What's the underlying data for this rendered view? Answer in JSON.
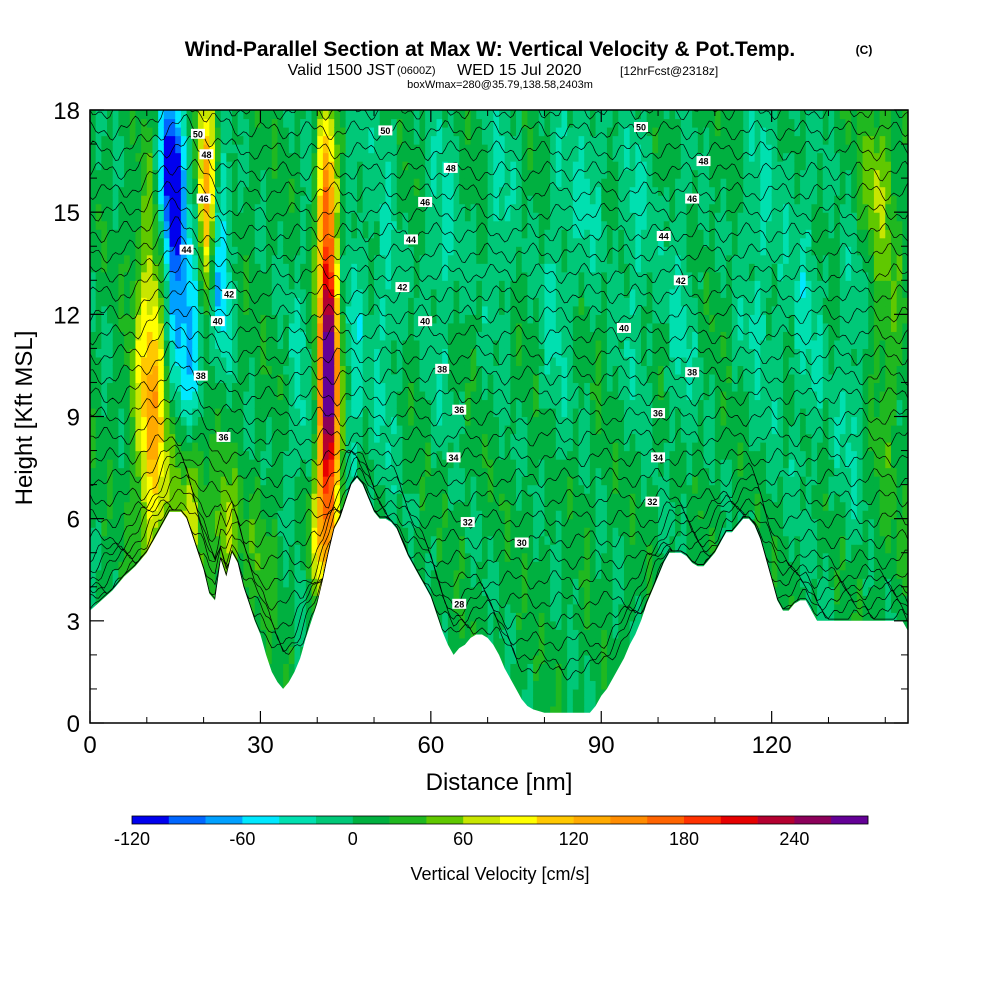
{
  "chart_data": {
    "type": "heatmap",
    "title": "Wind-Parallel Section at Max W: Vertical Velocity & Pot.Temp.",
    "title_mark": "(C)",
    "subtitle": {
      "prefix": "Valid 1500 JST",
      "zulu": "(0600Z)",
      "date": "WED 15 Jul 2020",
      "forecast": "[12hrFcst@2318z]"
    },
    "boxnote": "boxWmax=280@35.79,138.58,2403m",
    "xlabel": "Distance [nm]",
    "ylabel": "Height [Kft MSL]",
    "xlim": [
      0,
      144
    ],
    "ylim": [
      0,
      18
    ],
    "x_ticks": [
      "0",
      "30",
      "60",
      "90",
      "120"
    ],
    "y_ticks": [
      "0",
      "3",
      "6",
      "9",
      "12",
      "15",
      "18"
    ],
    "colorbar": {
      "label": "Vertical Velocity [cm/s]",
      "min": -120,
      "max": 280,
      "step": 20,
      "tick_labels": [
        "-120",
        "-60",
        "0",
        "60",
        "120",
        "180",
        "240"
      ],
      "colors": [
        "#0000ee",
        "#0066ff",
        "#00a0ff",
        "#00e8ff",
        "#00e0b0",
        "#00c878",
        "#00b040",
        "#20b820",
        "#60c800",
        "#c8e600",
        "#ffff00",
        "#ffc800",
        "#ffaa00",
        "#ff8c00",
        "#ff6400",
        "#ff3200",
        "#e60000",
        "#b40030",
        "#8c005a",
        "#640096"
      ]
    },
    "theta_labels": [
      {
        "value": "50",
        "x": 19,
        "y": 17.3
      },
      {
        "value": "48",
        "x": 20.5,
        "y": 16.7
      },
      {
        "value": "46",
        "x": 20,
        "y": 15.4
      },
      {
        "value": "44",
        "x": 17,
        "y": 13.9
      },
      {
        "value": "42",
        "x": 24.5,
        "y": 12.6
      },
      {
        "value": "40",
        "x": 22.5,
        "y": 11.8
      },
      {
        "value": "38",
        "x": 19.5,
        "y": 10.2
      },
      {
        "value": "36",
        "x": 23.5,
        "y": 8.4
      },
      {
        "value": "50",
        "x": 52,
        "y": 17.4
      },
      {
        "value": "48",
        "x": 63.5,
        "y": 16.3
      },
      {
        "value": "46",
        "x": 59,
        "y": 15.3
      },
      {
        "value": "44",
        "x": 56.5,
        "y": 14.2
      },
      {
        "value": "42",
        "x": 55,
        "y": 12.8
      },
      {
        "value": "40",
        "x": 59,
        "y": 11.8
      },
      {
        "value": "38",
        "x": 62,
        "y": 10.4
      },
      {
        "value": "36",
        "x": 65,
        "y": 9.2
      },
      {
        "value": "34",
        "x": 64,
        "y": 7.8
      },
      {
        "value": "32",
        "x": 66.5,
        "y": 5.9
      },
      {
        "value": "30",
        "x": 76,
        "y": 5.3
      },
      {
        "value": "28",
        "x": 65,
        "y": 3.5
      },
      {
        "value": "50",
        "x": 97,
        "y": 17.5
      },
      {
        "value": "48",
        "x": 108,
        "y": 16.5
      },
      {
        "value": "46",
        "x": 106,
        "y": 15.4
      },
      {
        "value": "44",
        "x": 101,
        "y": 14.3
      },
      {
        "value": "42",
        "x": 104,
        "y": 13.0
      },
      {
        "value": "40",
        "x": 94,
        "y": 11.6
      },
      {
        "value": "38",
        "x": 106,
        "y": 10.3
      },
      {
        "value": "36",
        "x": 100,
        "y": 9.1
      },
      {
        "value": "34",
        "x": 100,
        "y": 7.8
      },
      {
        "value": "32",
        "x": 99,
        "y": 6.5
      }
    ],
    "terrain": [
      [
        0,
        3.3
      ],
      [
        2,
        3.6
      ],
      [
        4,
        3.9
      ],
      [
        6,
        4.3
      ],
      [
        8,
        4.6
      ],
      [
        10,
        5.0
      ],
      [
        12,
        5.6
      ],
      [
        14,
        6.2
      ],
      [
        16,
        6.2
      ],
      [
        17,
        6.0
      ],
      [
        18,
        5.5
      ],
      [
        19,
        5.0
      ],
      [
        20,
        4.5
      ],
      [
        21,
        3.8
      ],
      [
        22,
        3.6
      ],
      [
        23,
        4.8
      ],
      [
        24,
        4.3
      ],
      [
        25,
        5.0
      ],
      [
        26,
        4.7
      ],
      [
        27,
        4.0
      ],
      [
        28,
        3.5
      ],
      [
        29,
        3.0
      ],
      [
        30,
        2.6
      ],
      [
        31,
        2.0
      ],
      [
        32,
        1.5
      ],
      [
        33,
        1.2
      ],
      [
        34,
        1.0
      ],
      [
        35,
        1.2
      ],
      [
        36,
        1.5
      ],
      [
        37,
        1.9
      ],
      [
        38,
        2.5
      ],
      [
        39,
        3.0
      ],
      [
        40,
        3.5
      ],
      [
        41,
        4.2
      ],
      [
        42,
        5.0
      ],
      [
        43,
        5.7
      ],
      [
        44,
        6.0
      ],
      [
        45,
        6.5
      ],
      [
        46,
        7.0
      ],
      [
        47,
        7.2
      ],
      [
        48,
        7.0
      ],
      [
        49,
        6.6
      ],
      [
        50,
        6.2
      ],
      [
        51,
        6.0
      ],
      [
        52,
        6.0
      ],
      [
        53,
        5.9
      ],
      [
        54,
        5.7
      ],
      [
        55,
        5.3
      ],
      [
        56,
        4.9
      ],
      [
        57,
        4.6
      ],
      [
        58,
        4.3
      ],
      [
        59,
        4.0
      ],
      [
        60,
        3.7
      ],
      [
        61,
        3.2
      ],
      [
        62,
        2.7
      ],
      [
        63,
        2.3
      ],
      [
        64,
        2.0
      ],
      [
        65,
        2.2
      ],
      [
        66,
        2.3
      ],
      [
        67,
        2.5
      ],
      [
        68,
        2.6
      ],
      [
        69,
        2.6
      ],
      [
        70,
        2.5
      ],
      [
        71,
        2.3
      ],
      [
        72,
        2.0
      ],
      [
        73,
        1.6
      ],
      [
        74,
        1.3
      ],
      [
        75,
        1.0
      ],
      [
        76,
        0.7
      ],
      [
        77,
        0.5
      ],
      [
        78,
        0.4
      ],
      [
        80,
        0.3
      ],
      [
        85,
        0.3
      ],
      [
        88,
        0.3
      ],
      [
        89,
        0.5
      ],
      [
        90,
        0.8
      ],
      [
        91,
        1.0
      ],
      [
        92,
        1.3
      ],
      [
        93,
        1.6
      ],
      [
        94,
        1.9
      ],
      [
        95,
        2.3
      ],
      [
        96,
        2.6
      ],
      [
        97,
        3.0
      ],
      [
        98,
        3.5
      ],
      [
        99,
        3.9
      ],
      [
        100,
        4.3
      ],
      [
        101,
        4.7
      ],
      [
        102,
        5.0
      ],
      [
        103,
        5.0
      ],
      [
        104,
        5.0
      ],
      [
        105,
        4.9
      ],
      [
        106,
        4.7
      ],
      [
        107,
        4.6
      ],
      [
        108,
        4.6
      ],
      [
        109,
        4.8
      ],
      [
        110,
        5.0
      ],
      [
        111,
        5.3
      ],
      [
        112,
        5.6
      ],
      [
        113,
        5.6
      ],
      [
        114,
        5.8
      ],
      [
        115,
        6.0
      ],
      [
        116,
        6.0
      ],
      [
        117,
        5.8
      ],
      [
        118,
        5.4
      ],
      [
        119,
        4.8
      ],
      [
        120,
        4.2
      ],
      [
        121,
        3.6
      ],
      [
        122,
        3.3
      ],
      [
        123,
        3.3
      ],
      [
        124,
        3.5
      ],
      [
        125,
        3.6
      ],
      [
        126,
        3.6
      ],
      [
        127,
        3.3
      ],
      [
        128,
        3.0
      ],
      [
        130,
        3.0
      ],
      [
        135,
        3.0
      ],
      [
        140,
        3.0
      ],
      [
        143,
        3.0
      ],
      [
        144,
        2.7
      ]
    ],
    "w_features": [
      {
        "x": 11,
        "y": 9.6,
        "wx": 3,
        "wy": 5,
        "amp": 120
      },
      {
        "x": 18,
        "y": 7,
        "wx": 3,
        "wy": 3,
        "amp": 70
      },
      {
        "x": 20.5,
        "y": 15.5,
        "wx": 1.6,
        "wy": 3,
        "amp": 130
      },
      {
        "x": 14,
        "y": 16,
        "wx": 2,
        "wy": 2.5,
        "amp": -130
      },
      {
        "x": 15.5,
        "y": 12.5,
        "wx": 2.4,
        "wy": 3.8,
        "amp": -90
      },
      {
        "x": 18.5,
        "y": 10.5,
        "wx": 1.8,
        "wy": 3,
        "amp": -75
      },
      {
        "x": 23,
        "y": 13.5,
        "wx": 1.8,
        "wy": 3,
        "amp": -75
      },
      {
        "x": 24,
        "y": 5.5,
        "wx": 2,
        "wy": 2,
        "amp": 60
      },
      {
        "x": 42,
        "y": 10,
        "wx": 1.8,
        "wy": 4,
        "amp": 290
      },
      {
        "x": 41.5,
        "y": 15.5,
        "wx": 1.5,
        "wy": 2.5,
        "amp": 130
      },
      {
        "x": 41,
        "y": 5.5,
        "wx": 2.8,
        "wy": 2,
        "amp": 70
      },
      {
        "x": 37,
        "y": 9,
        "wx": 2.5,
        "wy": 5,
        "amp": -30
      },
      {
        "x": 46.5,
        "y": 11,
        "wx": 2,
        "wy": 7,
        "amp": -35
      },
      {
        "x": 52,
        "y": 12,
        "wx": 2.5,
        "wy": 6,
        "amp": -30
      },
      {
        "x": 62,
        "y": 14,
        "wx": 3,
        "wy": 5,
        "amp": -30
      },
      {
        "x": 72,
        "y": 15,
        "wx": 3,
        "wy": 4,
        "amp": -30
      },
      {
        "x": 82,
        "y": 13,
        "wx": 3,
        "wy": 5,
        "amp": -30
      },
      {
        "x": 88,
        "y": 16,
        "wx": 3,
        "wy": 3,
        "amp": -32
      },
      {
        "x": 96,
        "y": 14,
        "wx": 3,
        "wy": 5,
        "amp": -30
      },
      {
        "x": 104,
        "y": 12,
        "wx": 3,
        "wy": 5,
        "amp": -28
      },
      {
        "x": 118,
        "y": 14,
        "wx": 4,
        "wy": 6,
        "amp": -30
      },
      {
        "x": 126,
        "y": 12,
        "wx": 3,
        "wy": 6,
        "amp": -30
      },
      {
        "x": 134,
        "y": 10,
        "wx": 3,
        "wy": 4,
        "amp": -30
      },
      {
        "x": 140,
        "y": 12,
        "wx": 3,
        "wy": 6,
        "amp": 30
      },
      {
        "x": 138,
        "y": 16,
        "wx": 3,
        "wy": 2,
        "amp": 35
      },
      {
        "x": 30,
        "y": 5,
        "wx": 4,
        "wy": 2,
        "amp": 20
      }
    ]
  }
}
